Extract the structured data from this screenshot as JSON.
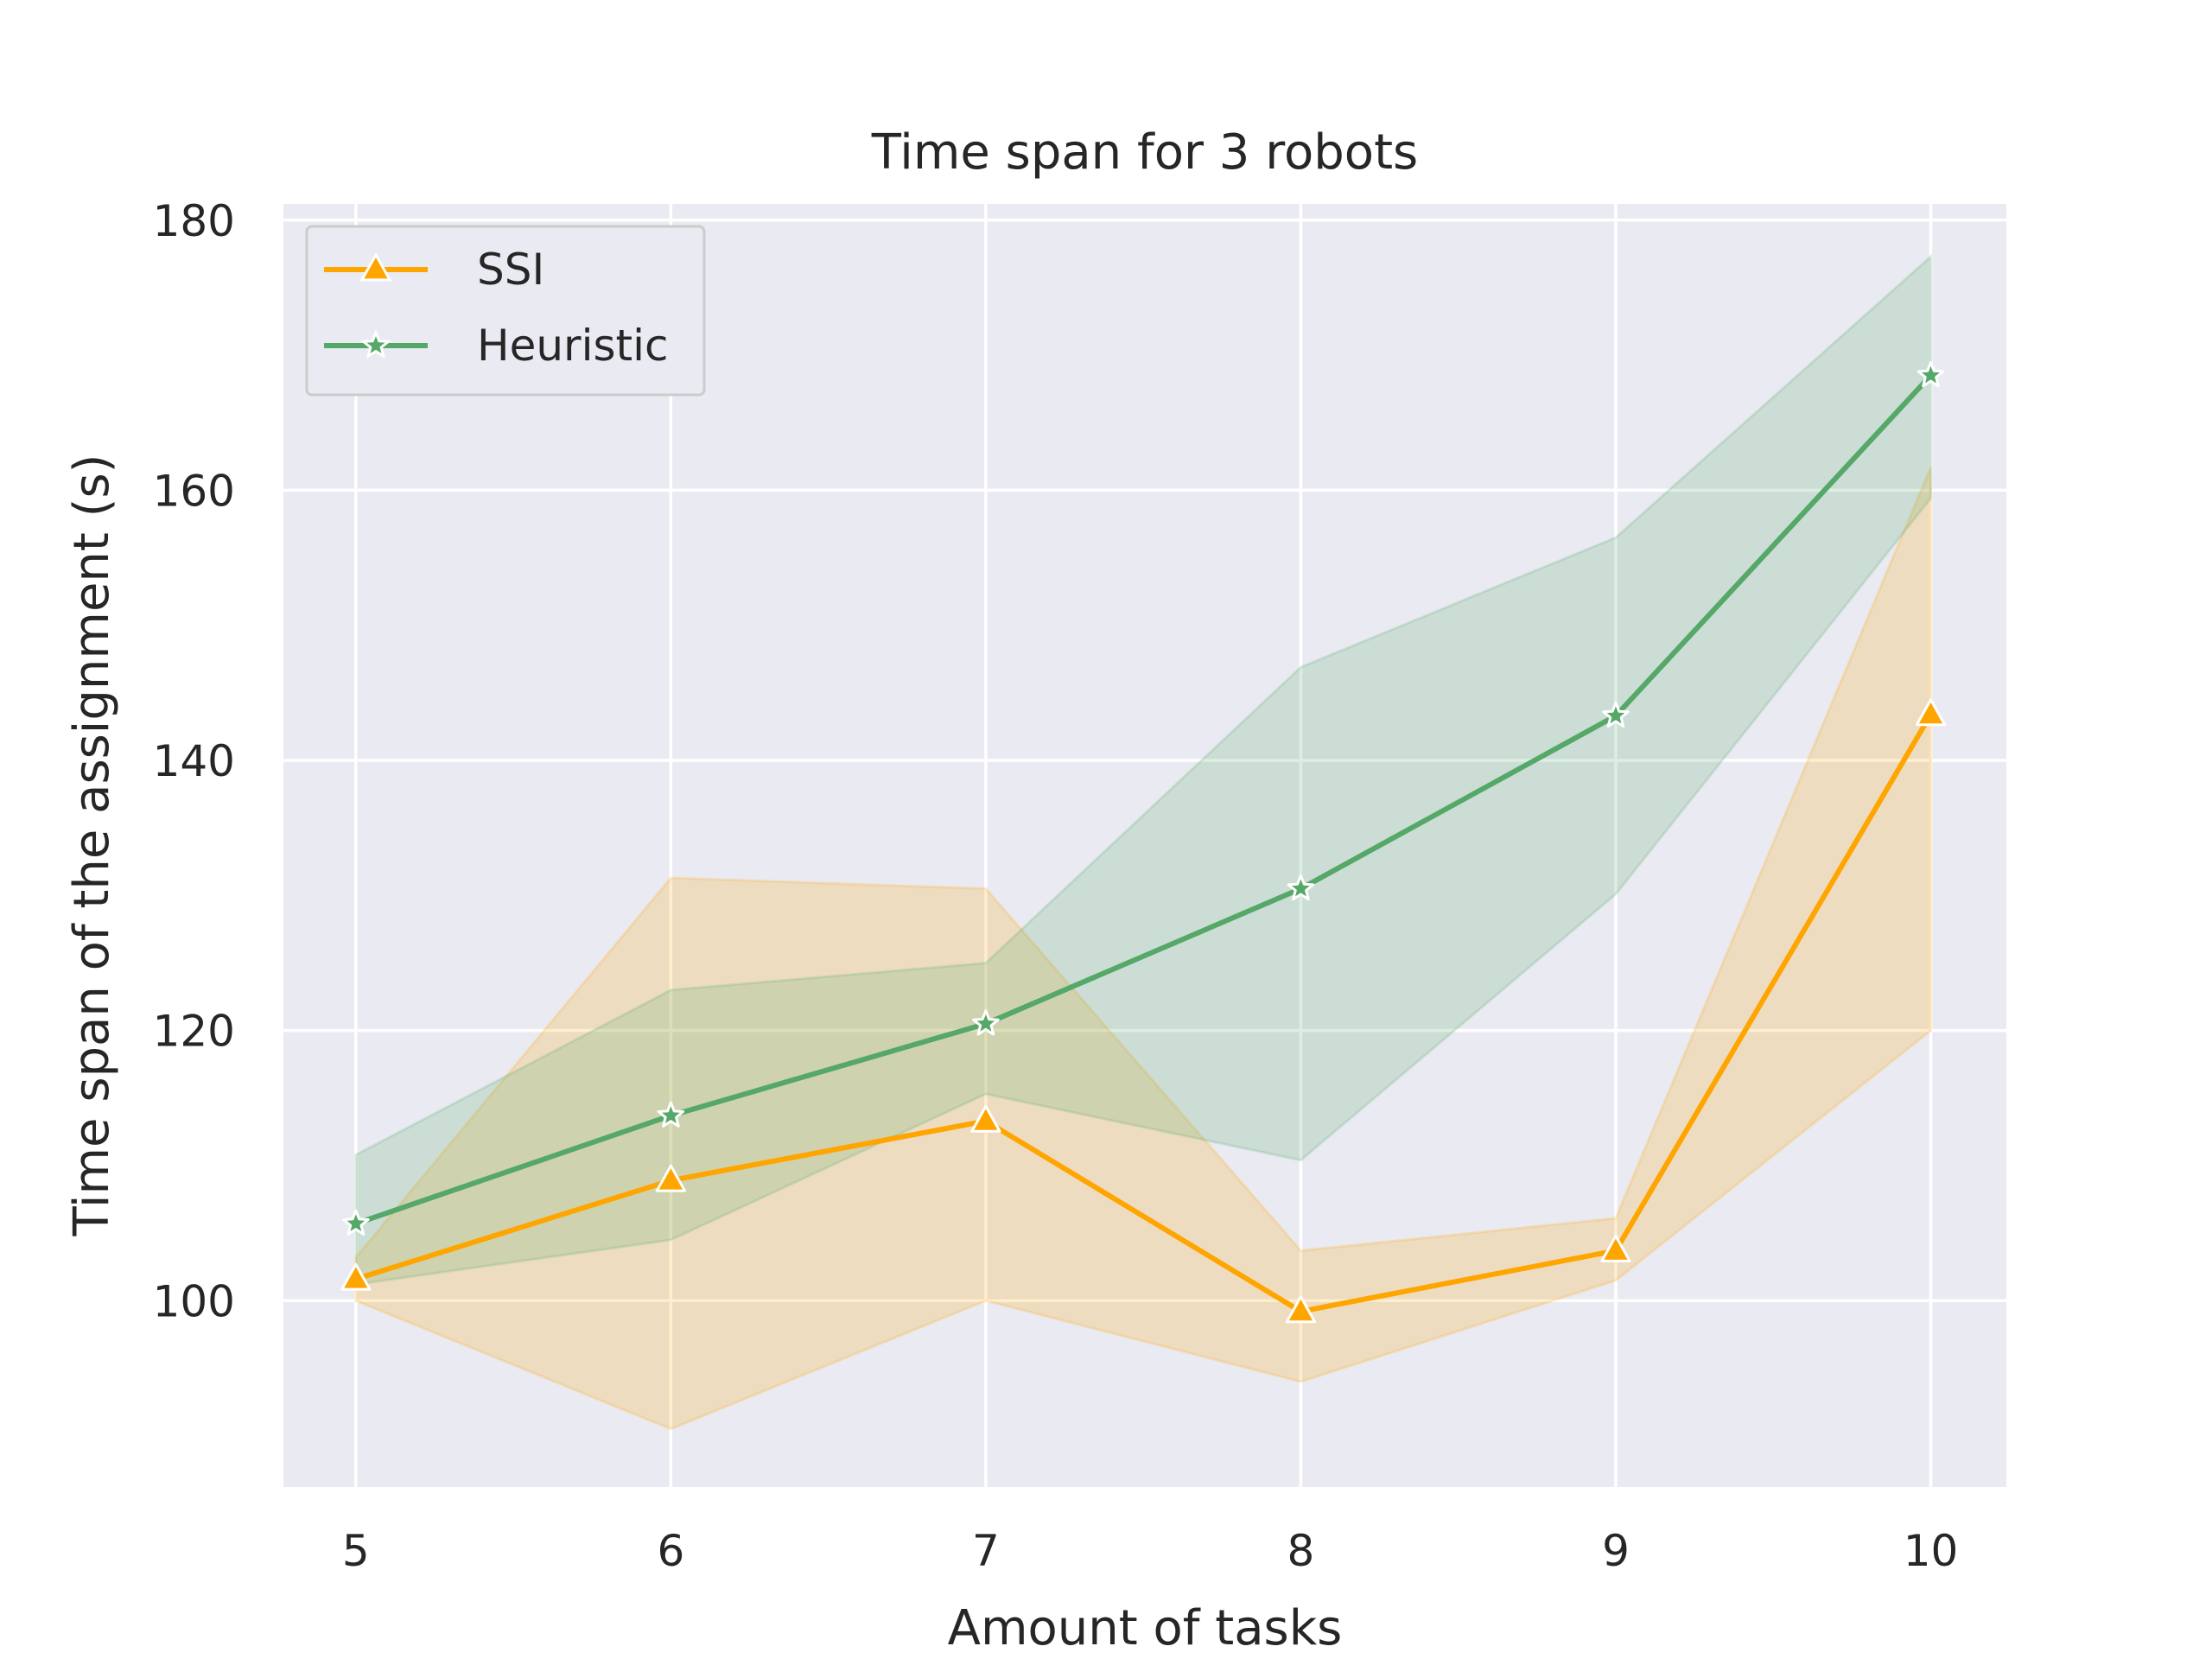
{
  "chart_data": {
    "type": "line",
    "title": "Time span for 3 robots",
    "xlabel": "Amount of tasks",
    "ylabel": "Time span of the assignment (s)",
    "x": [
      5,
      6,
      7,
      8,
      9,
      10
    ],
    "xticks": [
      "5",
      "6",
      "7",
      "8",
      "9",
      "10"
    ],
    "yticks": [
      "100",
      "120",
      "140",
      "160",
      "180"
    ],
    "xlim": [
      4.77,
      10.24
    ],
    "ylim": [
      86.2,
      181.2
    ],
    "grid": true,
    "legend_position": "top-left",
    "series": [
      {
        "name": "SSI",
        "marker": "triangle",
        "color": "#ffa500",
        "values": [
          101.6,
          108.9,
          113.3,
          99.2,
          103.7,
          143.4
        ],
        "ci_lower": [
          100.0,
          90.5,
          100.0,
          94.0,
          101.5,
          120.0
        ],
        "ci_upper": [
          103.2,
          131.3,
          130.5,
          103.7,
          106.1,
          161.7
        ]
      },
      {
        "name": "Heuristic",
        "marker": "star",
        "color": "#55a868",
        "values": [
          105.7,
          113.7,
          120.5,
          130.5,
          143.3,
          168.5
        ],
        "ci_lower": [
          101.2,
          104.5,
          115.3,
          110.4,
          130.1,
          159.4
        ],
        "ci_upper": [
          110.8,
          123.0,
          125.0,
          146.9,
          156.5,
          177.3
        ]
      }
    ]
  }
}
